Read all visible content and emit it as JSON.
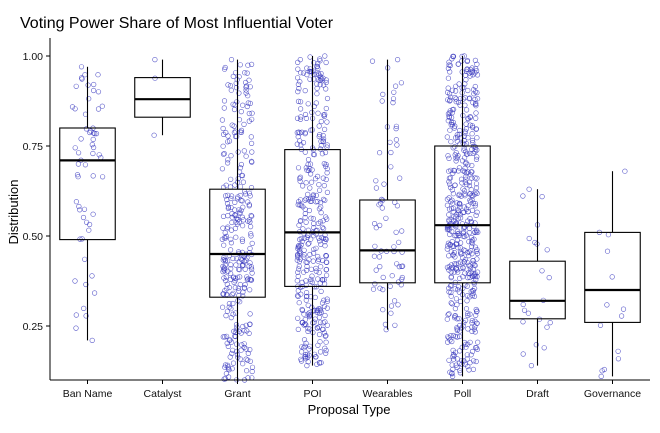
{
  "chart_data": {
    "type": "box",
    "title": "Voting Power Share of Most Influential Voter",
    "xlabel": "Proposal Type",
    "ylabel": "Distribution",
    "ylim": [
      0.1,
      1.05
    ],
    "yticks": [
      "0.25",
      "0.50",
      "0.75",
      "1.00"
    ],
    "ytick_values": [
      0.25,
      0.5,
      0.75,
      1.0
    ],
    "grid": false,
    "jitter_color": "#3b3bbf",
    "categories": [
      "Ban Name",
      "Catalyst",
      "Grant",
      "POI",
      "Wearables",
      "Poll",
      "Draft",
      "Governance"
    ],
    "boxes": [
      {
        "category": "Ban Name",
        "min": 0.21,
        "q1": 0.49,
        "median": 0.71,
        "q3": 0.8,
        "max": 0.97,
        "n_points": 60
      },
      {
        "category": "Catalyst",
        "min": 0.78,
        "q1": 0.83,
        "median": 0.88,
        "q3": 0.94,
        "max": 0.99,
        "n_points": 3
      },
      {
        "category": "Grant",
        "min": 0.1,
        "q1": 0.33,
        "median": 0.45,
        "q3": 0.63,
        "max": 0.99,
        "n_points": 320
      },
      {
        "category": "POI",
        "min": 0.14,
        "q1": 0.36,
        "median": 0.51,
        "q3": 0.74,
        "max": 1.0,
        "n_points": 380
      },
      {
        "category": "Wearables",
        "min": 0.24,
        "q1": 0.37,
        "median": 0.46,
        "q3": 0.6,
        "max": 0.99,
        "n_points": 70
      },
      {
        "category": "Poll",
        "min": 0.11,
        "q1": 0.37,
        "median": 0.53,
        "q3": 0.75,
        "max": 1.0,
        "n_points": 520
      },
      {
        "category": "Draft",
        "min": 0.14,
        "q1": 0.27,
        "median": 0.32,
        "q3": 0.43,
        "max": 0.63,
        "n_points": 22
      },
      {
        "category": "Governance",
        "min": 0.11,
        "q1": 0.26,
        "median": 0.35,
        "q3": 0.51,
        "max": 0.68,
        "n_points": 14
      }
    ]
  }
}
